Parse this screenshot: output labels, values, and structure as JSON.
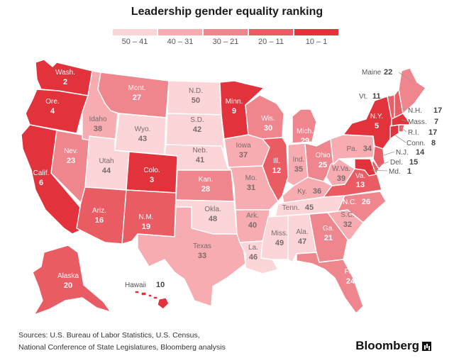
{
  "title": "Leadership gender equality ranking",
  "legend": [
    {
      "label": "50 – 41",
      "color": "#fbd5d8"
    },
    {
      "label": "40 – 31",
      "color": "#f6acb1"
    },
    {
      "label": "30 – 21",
      "color": "#f0868d"
    },
    {
      "label": "20 – 11",
      "color": "#ea5c64"
    },
    {
      "label": "10 – 1",
      "color": "#e2333d"
    }
  ],
  "states": {
    "WA": {
      "name": "Wash.",
      "rank": 2
    },
    "OR": {
      "name": "Ore.",
      "rank": 4
    },
    "CA": {
      "name": "Calif.",
      "rank": 6
    },
    "NV": {
      "name": "Nev.",
      "rank": 23
    },
    "ID": {
      "name": "Idaho",
      "rank": 38
    },
    "MT": {
      "name": "Mont.",
      "rank": 27
    },
    "WY": {
      "name": "Wyo.",
      "rank": 43
    },
    "UT": {
      "name": "Utah",
      "rank": 44
    },
    "AZ": {
      "name": "Ariz.",
      "rank": 16
    },
    "CO": {
      "name": "Colo.",
      "rank": 3
    },
    "NM": {
      "name": "N.M.",
      "rank": 19
    },
    "ND": {
      "name": "N.D.",
      "rank": 50
    },
    "SD": {
      "name": "S.D.",
      "rank": 42
    },
    "NE": {
      "name": "Neb.",
      "rank": 41
    },
    "KS": {
      "name": "Kan.",
      "rank": 28
    },
    "OK": {
      "name": "Okla.",
      "rank": 48
    },
    "TX": {
      "name": "Texas",
      "rank": 33
    },
    "MN": {
      "name": "Minn.",
      "rank": 9
    },
    "IA": {
      "name": "Iowa",
      "rank": 37
    },
    "MO": {
      "name": "Mo.",
      "rank": 31
    },
    "AR": {
      "name": "Ark.",
      "rank": 40
    },
    "LA": {
      "name": "La.",
      "rank": 46
    },
    "WI": {
      "name": "Wis.",
      "rank": 30
    },
    "IL": {
      "name": "Ill.",
      "rank": 12
    },
    "MI": {
      "name": "Mich.",
      "rank": 29
    },
    "IN": {
      "name": "Ind.",
      "rank": 35
    },
    "OH": {
      "name": "Ohio",
      "rank": 25
    },
    "KY": {
      "name": "Ky.",
      "rank": 36
    },
    "TN": {
      "name": "Tenn.",
      "rank": 45
    },
    "MS": {
      "name": "Miss.",
      "rank": 49
    },
    "AL": {
      "name": "Ala.",
      "rank": 47
    },
    "GA": {
      "name": "Ga.",
      "rank": 21
    },
    "FL": {
      "name": "Fla.",
      "rank": 24
    },
    "SC": {
      "name": "S.C.",
      "rank": 32
    },
    "NC": {
      "name": "N.C.",
      "rank": 26
    },
    "VA": {
      "name": "Va.",
      "rank": 13
    },
    "WV": {
      "name": "W.Va.",
      "rank": 39
    },
    "PA": {
      "name": "Pa.",
      "rank": 34
    },
    "NY": {
      "name": "N.Y.",
      "rank": 5
    },
    "ME": {
      "name": "Maine",
      "rank": 22
    },
    "VT": {
      "name": "Vt.",
      "rank": 11
    },
    "NH": {
      "name": "N.H.",
      "rank": 17
    },
    "MA": {
      "name": "Mass.",
      "rank": 7
    },
    "RI": {
      "name": "R.I.",
      "rank": 17
    },
    "CT": {
      "name": "Conn.",
      "rank": 8
    },
    "NJ": {
      "name": "N.J.",
      "rank": 14
    },
    "DE": {
      "name": "Del.",
      "rank": 15
    },
    "MD": {
      "name": "Md.",
      "rank": 1
    },
    "AK": {
      "name": "Alaska",
      "rank": 20
    },
    "HI": {
      "name": "Hawaii",
      "rank": 10
    }
  },
  "sources": [
    "Sources: U.S. Bureau of Labor Statistics, U.S. Census,",
    "National Conference of State Legislatures, Bloomberg analysis"
  ],
  "brand": "Bloomberg"
}
